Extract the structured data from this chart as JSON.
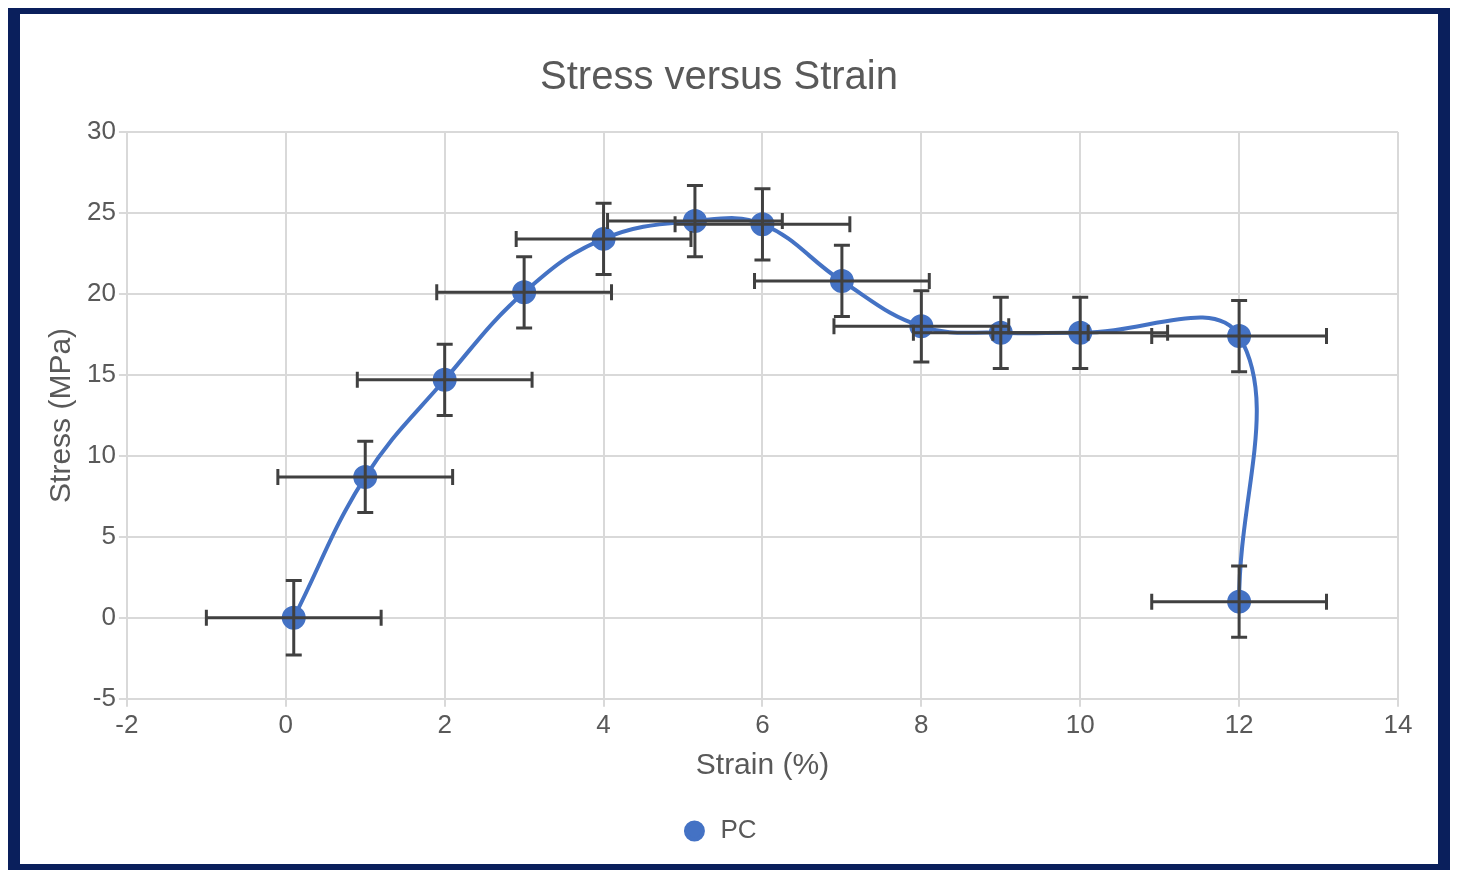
{
  "chart_data": {
    "type": "line",
    "title": "Stress versus Strain",
    "xlabel": "Strain (%)",
    "ylabel": "Stress (MPa)",
    "series": [
      {
        "name": "PC",
        "color": "#4472c4",
        "x": [
          0.1,
          1,
          2,
          3,
          4,
          5.15,
          6,
          7,
          8,
          9,
          10,
          12,
          12
        ],
        "values": [
          0,
          8.7,
          14.7,
          20.1,
          23.4,
          24.5,
          24.3,
          20.8,
          18,
          17.6,
          17.6,
          17.4,
          1
        ],
        "errors": [
          2.3,
          2.2,
          2.2,
          2.2,
          2.2,
          2.2,
          2.2,
          2.2,
          2.2,
          2.2,
          2.2,
          2.2,
          2.2
        ],
        "xerrors": [
          1.1,
          1.1,
          1.1,
          1.1,
          1.1,
          1.1,
          1.1,
          1.1,
          1.1,
          1.1,
          1.1,
          1.1,
          1.1
        ]
      }
    ],
    "xlim": [
      -2,
      14
    ],
    "xticks": [
      -2,
      0,
      2,
      4,
      6,
      8,
      10,
      12,
      14
    ],
    "ylim": [
      -5,
      30
    ],
    "yticks": [
      -5,
      0,
      5,
      10,
      15,
      20,
      25,
      30
    ],
    "grid": true,
    "legend": "bottom",
    "marker": "circle",
    "line_style": "solid"
  }
}
